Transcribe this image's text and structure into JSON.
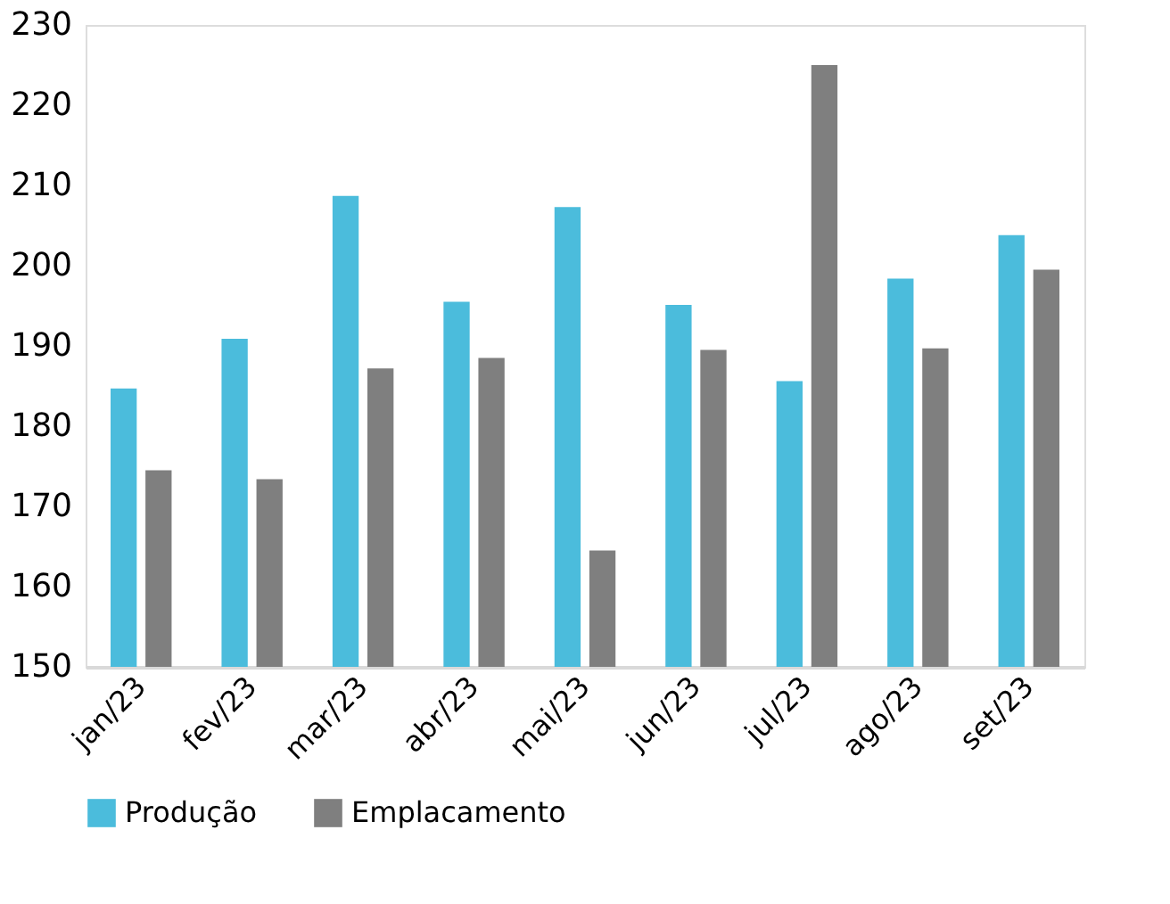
{
  "chart_data": {
    "type": "bar",
    "categories": [
      "jan/23",
      "fev/23",
      "mar/23",
      "abr/23",
      "mai/23",
      "jun/23",
      "jul/23",
      "ago/23",
      "set/23"
    ],
    "series": [
      {
        "name": "Produção",
        "color": "#4bbcdc",
        "values": [
          184.7,
          190.9,
          208.7,
          195.5,
          207.3,
          195.1,
          185.6,
          198.4,
          203.8
        ]
      },
      {
        "name": "Emplacamento",
        "color": "#7f7f7f",
        "values": [
          174.5,
          173.4,
          187.2,
          188.5,
          164.5,
          189.5,
          225,
          189.7,
          199.5
        ]
      }
    ],
    "ylim": [
      150,
      230
    ],
    "yticks": [
      150,
      160,
      170,
      180,
      190,
      200,
      210,
      220,
      230
    ],
    "grid": false,
    "legend": "bottom"
  }
}
